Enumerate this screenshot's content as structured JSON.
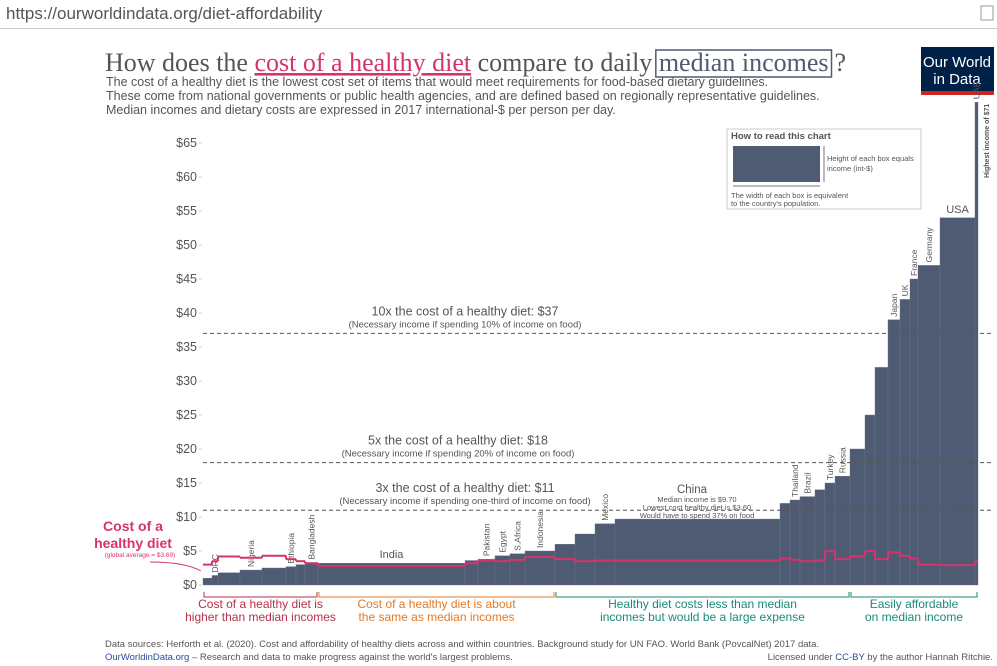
{
  "url": "https://ourworldindata.org/diet-affordability",
  "logo": [
    "Our World",
    "in Data"
  ],
  "chart_data": {
    "type": "variable-width-bar",
    "title_parts": [
      "How does the ",
      "cost of a healthy diet",
      " compare to daily ",
      "median incomes",
      "?"
    ],
    "subtitle": [
      "The cost of a healthy diet is the lowest cost set of items that would meet requirements for food-based dietary guidelines.",
      "These come from national governments or public health agencies, and are defined based on regionally representative guidelines.",
      "Median incomes and dietary costs are expressed in 2017 international-$ per person per day."
    ],
    "how_to_read": {
      "title": "How to read this chart",
      "height_note": [
        "Height of each box equals",
        "income (int-$)"
      ],
      "width_note": [
        "The width of each box is equivalent",
        "to the country's population."
      ]
    },
    "categories": [
      null,
      "DRC",
      null,
      "Nigeria",
      null,
      "Ethiopia",
      null,
      "Bangladesh",
      "India",
      null,
      "Pakistan",
      "Egypt",
      "S.Africa",
      "Indonesia",
      null,
      null,
      "Mexico",
      "China",
      null,
      "Thailand",
      "Brazil",
      null,
      "Turkey",
      "Russia",
      null,
      null,
      null,
      "Japan",
      "UK",
      "France",
      "Germany",
      "USA",
      "UAE"
    ],
    "values": [
      1.0,
      1.4,
      1.8,
      2.2,
      2.5,
      2.7,
      3.0,
      3.3,
      3.2,
      3.6,
      3.8,
      4.3,
      4.6,
      5.0,
      6.0,
      7.5,
      9.0,
      9.7,
      12,
      12.5,
      13,
      14,
      15,
      16,
      20,
      25,
      32,
      39,
      42,
      45,
      47,
      54,
      71
    ],
    "population": [
      81,
      54,
      198,
      198,
      216,
      90,
      81,
      117,
      1323,
      117,
      153,
      135,
      135,
      270,
      180,
      180,
      180,
      1485,
      90,
      90,
      135,
      90,
      90,
      135,
      135,
      90,
      117,
      108,
      90,
      72,
      198,
      315,
      27
    ],
    "color": "#4f5a73",
    "diet_cost": {
      "color": "#d6336c",
      "values": [
        3.0,
        3.5,
        4.2,
        4.0,
        4.3,
        3.8,
        3.5,
        3.2,
        2.8,
        3.2,
        3.6,
        3.5,
        3.7,
        4.1,
        3.8,
        3.5,
        3.6,
        3.6,
        3.9,
        3.7,
        3.5,
        3.6,
        5.0,
        3.8,
        4.2,
        5.0,
        3.8,
        4.8,
        4.3,
        3.9,
        3.0,
        2.9,
        3.5
      ]
    },
    "ylim": [
      0,
      71
    ],
    "yticks": [
      {
        "value": 0,
        "label": "$0"
      },
      {
        "value": 5,
        "label": "$5"
      },
      {
        "value": 10,
        "label": "$10"
      },
      {
        "value": 15,
        "label": "$15"
      },
      {
        "value": 20,
        "label": "$20"
      },
      {
        "value": 25,
        "label": "$25"
      },
      {
        "value": 30,
        "label": "$30"
      },
      {
        "value": 35,
        "label": "$35"
      },
      {
        "value": 40,
        "label": "$40"
      },
      {
        "value": 45,
        "label": "$45"
      },
      {
        "value": 50,
        "label": "$50"
      },
      {
        "value": 55,
        "label": "$55"
      },
      {
        "value": 60,
        "label": "$60"
      },
      {
        "value": 65,
        "label": "$65"
      }
    ],
    "grid": false,
    "reference_lines": [
      {
        "value": 37,
        "label": "10x the cost of a healthy diet: $37",
        "note": "(Necessary income if spending 10% of income on food)"
      },
      {
        "value": 18,
        "label": "5x the cost of a healthy diet: $18",
        "note": "(Necessary income if spending 20% of income on food)"
      },
      {
        "value": 11,
        "label": "3x the cost of a healthy diet: $11",
        "note": "(Necessary income if spending one-third of income on food)"
      }
    ],
    "china_note": [
      "Median income is $9.70",
      "Lowest cost healthy diet is $3.60",
      "Would have to spend 37% on food"
    ],
    "uae_note": "Highest income of $71",
    "diet_label": [
      "Cost of a",
      "healthy diet"
    ],
    "diet_average": "(global average = $3.69)",
    "groups": [
      [
        "Cost of a healthy diet is",
        "higher than median incomes"
      ],
      [
        "Cost of a healthy diet is about",
        "the same as median incomes"
      ],
      [
        "Healthy diet costs less than median",
        "incomes but would be a large expense"
      ],
      [
        "Easily affordable",
        "on median income"
      ]
    ]
  },
  "footer": {
    "sources": "Data sources: Herforth et al. (2020). Cost and affordability of healthy diets across and within countries. Background study for UN FAO. World Bank (PovcalNet) 2017 data.",
    "site": "OurWorldinData.org",
    "tagline": " – Research and data to make progress against the world's largest problems.",
    "license_pre": "Licensed under ",
    "license": "CC-BY",
    "license_post": " by the author Hannah Ritchie."
  }
}
